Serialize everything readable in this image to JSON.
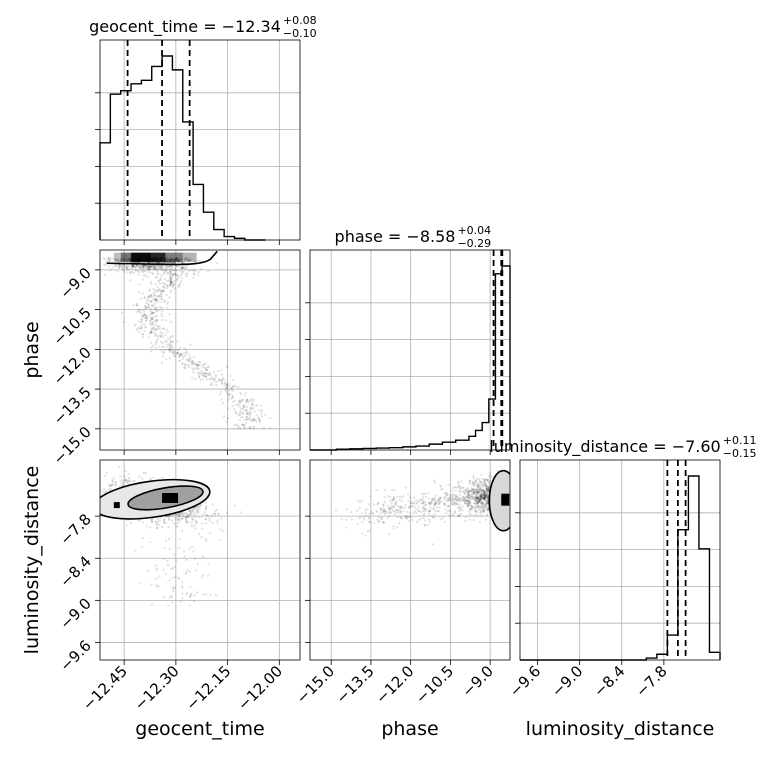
{
  "chart_data": {
    "type": "corner",
    "parameters": [
      {
        "name": "geocent_time",
        "axis_label": "geocent_time",
        "range": [
          -12.52,
          -11.94
        ],
        "ticks": [
          -12.45,
          -12.3,
          -12.15,
          -12.0
        ],
        "tick_labels": [
          "−12.45",
          "−12.30",
          "−12.15",
          "−12.00"
        ],
        "title_main": "geocent_time = −12.34",
        "title_plus": "+0.08",
        "title_minus": "−0.10",
        "median": -12.34,
        "q_low": -12.44,
        "q_high": -12.26,
        "hist_edges": [
          -12.52,
          -12.49,
          -12.46,
          -12.43,
          -12.4,
          -12.37,
          -12.34,
          -12.31,
          -12.28,
          -12.25,
          -12.22,
          -12.19,
          -12.16,
          -12.13,
          -12.1,
          -12.07,
          -12.04
        ],
        "hist_counts": [
          0.28,
          0.42,
          0.43,
          0.45,
          0.46,
          0.5,
          0.53,
          0.49,
          0.34,
          0.16,
          0.08,
          0.03,
          0.01,
          0.005,
          0,
          0
        ]
      },
      {
        "name": "phase",
        "axis_label": "phase",
        "range": [
          -15.8,
          -8.25
        ],
        "ticks": [
          -15.0,
          -13.5,
          -12.0,
          -10.5,
          -9.0
        ],
        "tick_labels": [
          "−15.0",
          "−13.5",
          "−12.0",
          "−10.5",
          "−9.0"
        ],
        "title_main": "phase = −8.58",
        "title_plus": "+0.04",
        "title_minus": "−0.29",
        "median": -8.58,
        "q_low": -8.87,
        "q_high": -8.54,
        "hist_edges": [
          -15.8,
          -15.3,
          -14.8,
          -14.3,
          -13.8,
          -13.3,
          -12.8,
          -12.3,
          -11.8,
          -11.3,
          -10.8,
          -10.3,
          -9.8,
          -9.55,
          -9.3,
          -9.05,
          -8.8,
          -8.55,
          -8.25
        ],
        "hist_counts": [
          0,
          0,
          0.002,
          0.003,
          0.004,
          0.005,
          0.006,
          0.008,
          0.01,
          0.015,
          0.02,
          0.025,
          0.035,
          0.05,
          0.07,
          0.13,
          0.45,
          0.47
        ]
      },
      {
        "name": "luminosity_distance",
        "axis_label": "luminosity_distance",
        "range": [
          -9.85,
          -7.0
        ],
        "ticks": [
          -9.6,
          -9.0,
          -8.4,
          -7.8
        ],
        "tick_labels": [
          "−9.6",
          "−9.0",
          "−8.4",
          "−7.8"
        ],
        "title_main": "luminosity_distance = −7.60",
        "title_plus": "+0.11",
        "title_minus": "−0.15",
        "median": -7.6,
        "q_low": -7.75,
        "q_high": -7.49,
        "hist_edges": [
          -9.85,
          -9.7,
          -9.55,
          -9.4,
          -9.25,
          -9.1,
          -8.95,
          -8.8,
          -8.65,
          -8.5,
          -8.35,
          -8.2,
          -8.05,
          -7.9,
          -7.75,
          -7.6,
          -7.45,
          -7.3,
          -7.15,
          -7.0
        ],
        "hist_counts": [
          0,
          0,
          0,
          0,
          0,
          0,
          0,
          0,
          0,
          0,
          0,
          0,
          0.005,
          0.015,
          0.065,
          0.34,
          0.48,
          0.29,
          0.02
        ]
      }
    ],
    "grid": true
  }
}
